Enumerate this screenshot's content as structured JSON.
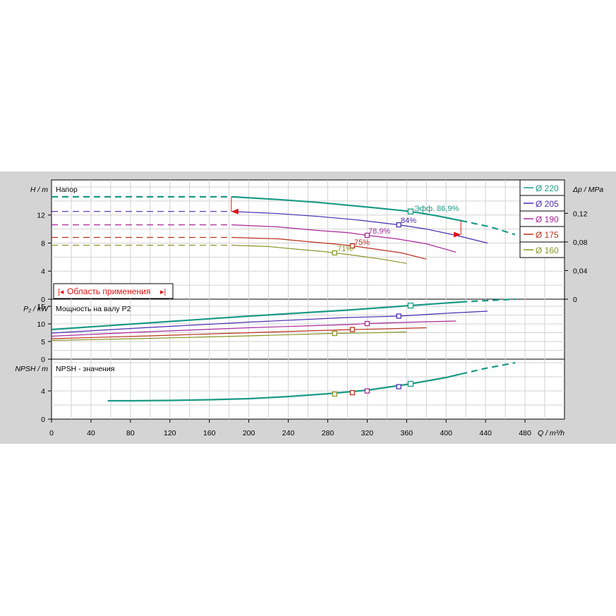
{
  "colors": {
    "d220": "#1a9a86",
    "d205": "#4a2ab0",
    "d190": "#a8289a",
    "d175": "#b8321e",
    "d160": "#8a9628",
    "grid": "#d2d2d2",
    "axis": "#000000",
    "range_marker": "#e01010"
  },
  "panels": {
    "head_title": "Напор",
    "power_title": "Мощность на валу P2",
    "npsh_title": "NPSH - значения",
    "range_label": "Область применения"
  },
  "axes": {
    "h_label": "H / m",
    "dp_label": "Δp / MPa",
    "p2_label": "P₂ / kW",
    "npsh_label": "NPSH / m",
    "q_label": "Q / m³/h"
  },
  "eff_labels": {
    "d220": "Эфф. 86,9%",
    "d205": "84%",
    "d190": "78,9%",
    "d175": "75%",
    "d160": "71%"
  },
  "legend": [
    {
      "key": "d220",
      "label": "Ø 220"
    },
    {
      "key": "d205",
      "label": "Ø 205"
    },
    {
      "key": "d190",
      "label": "Ø 190"
    },
    {
      "key": "d175",
      "label": "Ø 175"
    },
    {
      "key": "d160",
      "label": "Ø 160"
    }
  ],
  "chart_data": {
    "type": "line",
    "x_ticks": [
      0,
      40,
      80,
      120,
      160,
      200,
      240,
      280,
      320,
      360,
      400,
      440,
      480
    ],
    "xlim": [
      0,
      520
    ],
    "head": {
      "ylim": [
        0,
        17
      ],
      "y_ticks": [
        0,
        4,
        8,
        12
      ],
      "dp_ticks": [
        0,
        0.04,
        0.08,
        0.12
      ],
      "dp_tick_labels": [
        "0",
        "0,04",
        "0,08",
        "0,12"
      ],
      "series": [
        {
          "key": "d220",
          "name": "Ø 220",
          "dashed_to": 183,
          "points": [
            [
              0,
              14.6
            ],
            [
              183,
              14.6
            ],
            [
              230,
              14.2
            ],
            [
              270,
              13.8
            ],
            [
              300,
              13.4
            ],
            [
              330,
              13.0
            ],
            [
              364,
              12.5
            ],
            [
              390,
              11.9
            ],
            [
              415,
              11.2
            ],
            [
              445,
              10.3
            ],
            [
              470,
              9.2
            ]
          ],
          "solid_end": 415,
          "bep": [
            364,
            12.5
          ]
        },
        {
          "key": "d205",
          "name": "Ø 205",
          "dashed_to": 183,
          "points": [
            [
              0,
              12.5
            ],
            [
              183,
              12.5
            ],
            [
              230,
              12.2
            ],
            [
              270,
              11.8
            ],
            [
              310,
              11.3
            ],
            [
              352,
              10.6
            ],
            [
              380,
              10.0
            ],
            [
              410,
              9.1
            ],
            [
              442,
              8.0
            ]
          ],
          "solid_end": 442,
          "bep": [
            352,
            10.6
          ]
        },
        {
          "key": "d190",
          "name": "Ø 190",
          "dashed_to": 183,
          "points": [
            [
              0,
              10.6
            ],
            [
              183,
              10.6
            ],
            [
              230,
              10.3
            ],
            [
              270,
              9.8
            ],
            [
              300,
              9.5
            ],
            [
              320,
              9.1
            ],
            [
              350,
              8.6
            ],
            [
              380,
              7.9
            ],
            [
              410,
              6.7
            ]
          ],
          "solid_end": 410,
          "bep": [
            320,
            9.1
          ]
        },
        {
          "key": "d175",
          "name": "Ø 175",
          "dashed_to": 183,
          "points": [
            [
              0,
              8.8
            ],
            [
              183,
              8.8
            ],
            [
              230,
              8.6
            ],
            [
              260,
              8.2
            ],
            [
              285,
              7.9
            ],
            [
              305,
              7.6
            ],
            [
              330,
              7.1
            ],
            [
              355,
              6.6
            ],
            [
              380,
              5.7
            ]
          ],
          "solid_end": 380,
          "bep": [
            305,
            7.6
          ]
        },
        {
          "key": "d160",
          "name": "Ø 160",
          "dashed_to": 183,
          "points": [
            [
              0,
              7.7
            ],
            [
              183,
              7.7
            ],
            [
              220,
              7.5
            ],
            [
              250,
              7.1
            ],
            [
              275,
              6.8
            ],
            [
              287,
              6.6
            ],
            [
              310,
              6.2
            ],
            [
              335,
              5.7
            ],
            [
              360,
              5.1
            ]
          ],
          "solid_end": 360,
          "bep": [
            287,
            6.6
          ]
        }
      ]
    },
    "power": {
      "ylim": [
        0,
        17
      ],
      "y_ticks": [
        0,
        5,
        10,
        15
      ],
      "series": [
        {
          "key": "d220",
          "points": [
            [
              0,
              8.4
            ],
            [
              100,
              10.3
            ],
            [
              200,
              12.2
            ],
            [
              300,
              13.9
            ],
            [
              364,
              15.2
            ],
            [
              420,
              16.3
            ],
            [
              470,
              17.0
            ]
          ],
          "solid_end": 415,
          "bep": [
            364,
            15.2
          ]
        },
        {
          "key": "d205",
          "points": [
            [
              0,
              7.4
            ],
            [
              100,
              9.0
            ],
            [
              200,
              10.5
            ],
            [
              300,
              11.8
            ],
            [
              352,
              12.2
            ],
            [
              400,
              13.0
            ],
            [
              442,
              13.6
            ]
          ],
          "solid_end": 442,
          "bep": [
            352,
            12.2
          ]
        },
        {
          "key": "d190",
          "points": [
            [
              0,
              6.5
            ],
            [
              100,
              7.8
            ],
            [
              200,
              8.9
            ],
            [
              300,
              9.8
            ],
            [
              320,
              10.1
            ],
            [
              380,
              10.6
            ],
            [
              410,
              10.8
            ]
          ],
          "solid_end": 410,
          "bep": [
            320,
            10.1
          ]
        },
        {
          "key": "d175",
          "points": [
            [
              0,
              5.8
            ],
            [
              100,
              6.6
            ],
            [
              200,
              7.5
            ],
            [
              305,
              8.4
            ],
            [
              340,
              8.6
            ],
            [
              380,
              8.9
            ]
          ],
          "solid_end": 380,
          "bep": [
            305,
            8.4
          ]
        },
        {
          "key": "d160",
          "points": [
            [
              0,
              5.3
            ],
            [
              100,
              5.9
            ],
            [
              200,
              6.6
            ],
            [
              287,
              7.3
            ],
            [
              330,
              7.5
            ],
            [
              360,
              7.7
            ]
          ],
          "solid_end": 360,
          "bep": [
            287,
            7.3
          ]
        }
      ]
    },
    "npsh": {
      "ylim": [
        0,
        8.5
      ],
      "y_ticks": [
        0,
        4
      ],
      "series": [
        {
          "key": "d220",
          "points": [
            [
              57,
              2.6
            ],
            [
              80,
              2.6
            ],
            [
              120,
              2.65
            ],
            [
              160,
              2.75
            ],
            [
              200,
              2.9
            ],
            [
              240,
              3.2
            ],
            [
              280,
              3.6
            ],
            [
              320,
              4.1
            ],
            [
              364,
              5.0
            ],
            [
              400,
              5.9
            ],
            [
              440,
              7.2
            ],
            [
              470,
              8.0
            ]
          ],
          "solid_end": 415
        }
      ],
      "markers": [
        {
          "key": "d160",
          "point": [
            287,
            3.55
          ]
        },
        {
          "key": "d175",
          "point": [
            305,
            3.75
          ]
        },
        {
          "key": "d190",
          "point": [
            320,
            4.0
          ]
        },
        {
          "key": "d205",
          "point": [
            352,
            4.6
          ]
        },
        {
          "key": "d220",
          "point": [
            364,
            5.0
          ]
        }
      ]
    }
  }
}
